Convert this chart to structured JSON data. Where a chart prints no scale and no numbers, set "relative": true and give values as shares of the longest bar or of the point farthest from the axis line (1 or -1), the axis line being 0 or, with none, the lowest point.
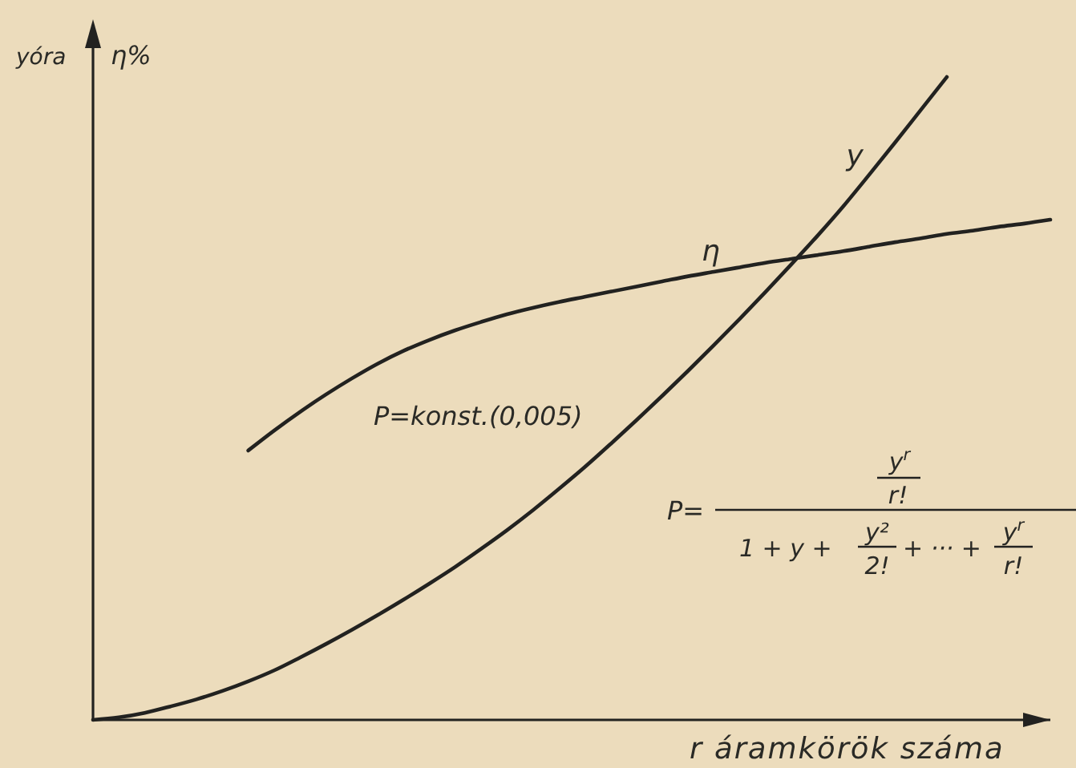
{
  "chart_data": {
    "type": "line",
    "relative": true,
    "tick_labels": false,
    "ylabel": "yóra",
    "y2label": "η%",
    "xlabel": "r áramkörök száma",
    "annotations": [
      "P=konst.(0,005)",
      "P=",
      "y$^{r}$",
      "r!",
      "1 + y +",
      "y²",
      "2!",
      "+ ··· +",
      "y$^{r}$",
      "r!"
    ],
    "categories": [
      null,
      null,
      null,
      null,
      null,
      null,
      null,
      null,
      null,
      null,
      null,
      null,
      null,
      null,
      null,
      null,
      null,
      null,
      null,
      null,
      null,
      null,
      null,
      null,
      null,
      null,
      null,
      null,
      null,
      null,
      null,
      null,
      null,
      null,
      null,
      null,
      null,
      null
    ],
    "series": [
      {
        "name": "y",
        "color": "#222220",
        "values": [
          0,
          0.004,
          0.011,
          0.021,
          0.032,
          0.045,
          0.06,
          0.077,
          0.097,
          0.118,
          0.14,
          0.163,
          0.187,
          0.212,
          0.238,
          0.266,
          0.295,
          0.326,
          0.359,
          0.393,
          0.429,
          0.466,
          0.504,
          0.543,
          0.583,
          0.624,
          0.666,
          0.709,
          0.753,
          0.799,
          0.848,
          0.898,
          0.949,
          1,
          null,
          null,
          null,
          null
        ]
      },
      {
        "name": "η",
        "color": "#222220",
        "values": [
          null,
          null,
          null,
          null,
          null,
          null,
          0.419,
          0.45,
          0.479,
          0.506,
          0.531,
          0.554,
          0.574,
          0.591,
          0.606,
          0.619,
          0.631,
          0.641,
          0.65,
          0.658,
          0.666,
          0.674,
          0.682,
          0.69,
          0.697,
          0.704,
          0.711,
          0.717,
          0.723,
          0.729,
          0.736,
          0.743,
          0.749,
          0.756,
          0.761,
          0.767,
          0.772,
          0.778
        ]
      }
    ]
  }
}
